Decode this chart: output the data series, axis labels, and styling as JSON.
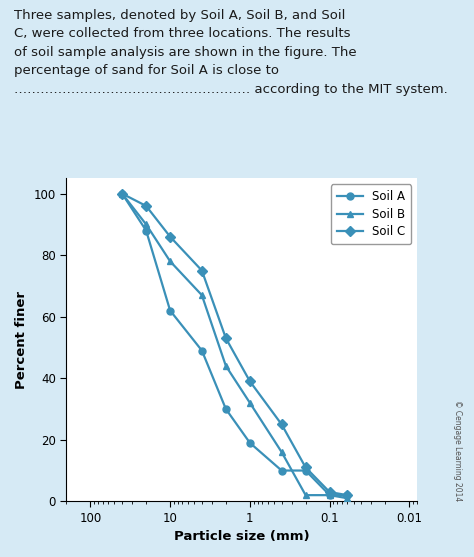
{
  "ylabel": "Percent finer",
  "xlabel": "Particle size (mm)",
  "bg_color": "#d6eaf5",
  "plot_bg": "#ffffff",
  "line_color": "#3a90b8",
  "soil_A_x": [
    40,
    20,
    10,
    4,
    2,
    1,
    0.4,
    0.2,
    0.1,
    0.06
  ],
  "soil_A_y": [
    100,
    88,
    62,
    49,
    30,
    19,
    10,
    10,
    2,
    2
  ],
  "soil_B_x": [
    40,
    20,
    10,
    4,
    2,
    1,
    0.4,
    0.2,
    0.1,
    0.06
  ],
  "soil_B_y": [
    100,
    90,
    78,
    67,
    44,
    32,
    16,
    2,
    2,
    1
  ],
  "soil_C_x": [
    40,
    20,
    10,
    4,
    2,
    1,
    0.4,
    0.2,
    0.1,
    0.06
  ],
  "soil_C_y": [
    100,
    96,
    86,
    75,
    53,
    39,
    25,
    11,
    3,
    2
  ],
  "ylim": [
    0,
    105
  ],
  "yticks": [
    0,
    20,
    40,
    60,
    80,
    100
  ],
  "xticks": [
    100,
    10,
    1,
    0.1,
    0.01
  ],
  "xtick_labels": [
    "100",
    "10",
    "1",
    "0.1",
    "0.01"
  ],
  "legend_labels": [
    "Soil A",
    "Soil B",
    "Soil C"
  ],
  "marker_A": "o",
  "marker_B": "^",
  "marker_C": "D",
  "copyright": "© Cengage Learning 2014",
  "text_line1": "Three samples, denoted by Soil A, Soil B, and Soil",
  "text_line2": "C, were collected from three locations. The results",
  "text_line3": "of soil sample analysis are shown in the figure. The",
  "text_line4": "percentage of sand for Soil A is close to",
  "text_line5": "……………………………………………… according to the MIT system."
}
